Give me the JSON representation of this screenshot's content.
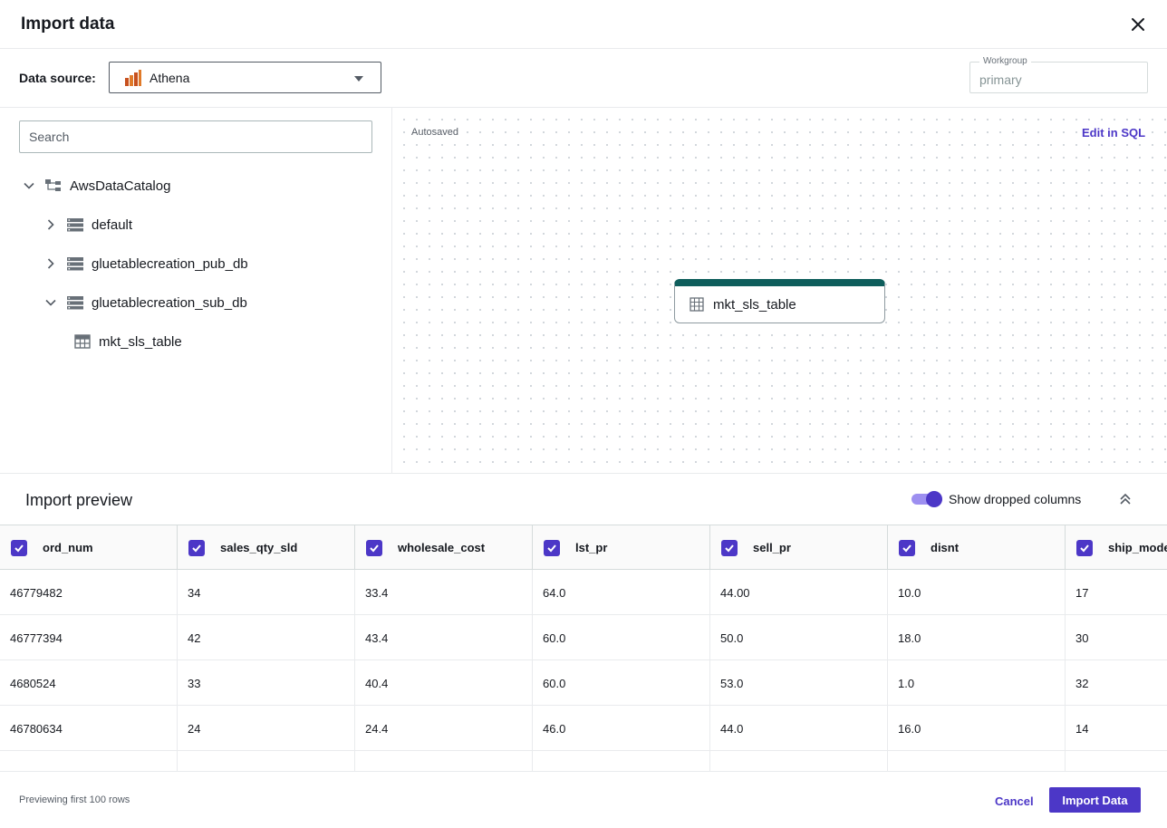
{
  "dialog": {
    "title": "Import data",
    "close_icon": "close-icon"
  },
  "source": {
    "label": "Data source:",
    "selected": "Athena",
    "icon": "athena-icon",
    "workgroup_label": "Workgroup",
    "workgroup_value": "primary"
  },
  "tree": {
    "search_placeholder": "Search",
    "root": {
      "label": "AwsDataCatalog",
      "icon": "catalog-icon",
      "expanded": true
    },
    "databases": [
      {
        "label": "default",
        "icon": "database-icon",
        "expanded": false
      },
      {
        "label": "gluetablecreation_pub_db",
        "icon": "database-icon",
        "expanded": false
      },
      {
        "label": "gluetablecreation_sub_db",
        "icon": "database-icon",
        "expanded": true
      }
    ],
    "tables": [
      {
        "label": "mkt_sls_table",
        "icon": "table-icon"
      }
    ]
  },
  "canvas": {
    "autosaved": "Autosaved",
    "edit_sql": "Edit in SQL",
    "node_label": "mkt_sls_table",
    "node_color": "#0e5e5c"
  },
  "preview": {
    "title": "Import preview",
    "toggle_label": "Show dropped columns",
    "toggle_on": true,
    "columns": [
      "ord_num",
      "sales_qty_sld",
      "wholesale_cost",
      "lst_pr",
      "sell_pr",
      "disnt",
      "ship_mode"
    ],
    "rows": [
      [
        "46779482",
        "34",
        "33.4",
        "64.0",
        "44.00",
        "10.0",
        "17"
      ],
      [
        "46777394",
        "42",
        "43.4",
        "60.0",
        "50.0",
        "18.0",
        "30"
      ],
      [
        "4680524",
        "33",
        "40.4",
        "60.0",
        "53.0",
        "1.0",
        "32"
      ],
      [
        "46780634",
        "24",
        "24.4",
        "46.0",
        "44.0",
        "16.0",
        "14"
      ]
    ]
  },
  "footer": {
    "note": "Previewing first 100 rows",
    "cancel": "Cancel",
    "import": "Import Data"
  },
  "colors": {
    "accent": "#4c37c7",
    "node_header": "#0e5e5c",
    "text": "#16191f"
  }
}
